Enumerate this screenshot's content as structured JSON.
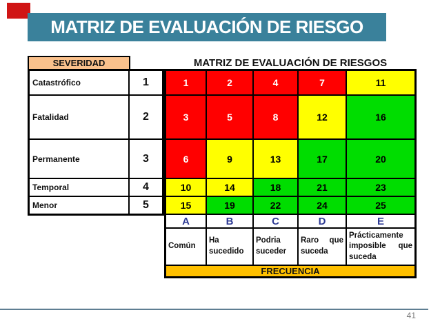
{
  "banner": {
    "title": "MATRIZ DE EVALUACIÓN DE RIESGO"
  },
  "page_number": "41",
  "table": {
    "title": "MATRIZ DE EVALUACIÓN DE RIESGOS",
    "severity_header": "SEVERIDAD",
    "frequency_footer": "FRECUENCIA",
    "severity_rows": [
      {
        "label": "Catastrófico",
        "level": "1"
      },
      {
        "label": "Fatalidad",
        "level": "2"
      },
      {
        "label": "Permanente",
        "level": "3"
      },
      {
        "label": "Temporal",
        "level": "4"
      },
      {
        "label": "Menor",
        "level": "5"
      }
    ],
    "frequency_columns": [
      {
        "letter": "A",
        "description": "Común"
      },
      {
        "letter": "B",
        "description": "Ha sucedido"
      },
      {
        "letter": "C",
        "description": "Podria suceder"
      },
      {
        "letter": "D",
        "description": "Raro que suceda"
      },
      {
        "letter": "E",
        "description": "Prácticamente imposible que suceda"
      }
    ],
    "matrix": {
      "rows": [
        [
          {
            "value": "1",
            "risk": "red"
          },
          {
            "value": "2",
            "risk": "red"
          },
          {
            "value": "4",
            "risk": "red"
          },
          {
            "value": "7",
            "risk": "red"
          },
          {
            "value": "11",
            "risk": "yellow"
          }
        ],
        [
          {
            "value": "3",
            "risk": "red"
          },
          {
            "value": "5",
            "risk": "red"
          },
          {
            "value": "8",
            "risk": "red"
          },
          {
            "value": "12",
            "risk": "yellow"
          },
          {
            "value": "16",
            "risk": "green"
          }
        ],
        [
          {
            "value": "6",
            "risk": "red"
          },
          {
            "value": "9",
            "risk": "yellow"
          },
          {
            "value": "13",
            "risk": "yellow"
          },
          {
            "value": "17",
            "risk": "green"
          },
          {
            "value": "20",
            "risk": "green"
          }
        ],
        [
          {
            "value": "10",
            "risk": "yellow"
          },
          {
            "value": "14",
            "risk": "yellow"
          },
          {
            "value": "18",
            "risk": "green"
          },
          {
            "value": "21",
            "risk": "green"
          },
          {
            "value": "23",
            "risk": "green"
          }
        ],
        [
          {
            "value": "15",
            "risk": "yellow"
          },
          {
            "value": "19",
            "risk": "green"
          },
          {
            "value": "22",
            "risk": "green"
          },
          {
            "value": "24",
            "risk": "green"
          },
          {
            "value": "25",
            "risk": "green"
          }
        ]
      ]
    },
    "colors": {
      "red": "#FF0000",
      "yellow": "#FFFF00",
      "green": "#00DD00",
      "cell_text": {
        "red": "#FFFFFF",
        "yellow": "#000000",
        "green": "#000000"
      },
      "severity_header_bg": "#FAC18C",
      "frequency_footer_bg": "#FFC000",
      "letter_color": "#2D3A94",
      "banner_bg": "#3A819B",
      "banner_text": "#FFFFFF",
      "accent_red": "#D01515",
      "divider": "#5E7E92",
      "page_number_color": "#7A7A7A"
    }
  }
}
